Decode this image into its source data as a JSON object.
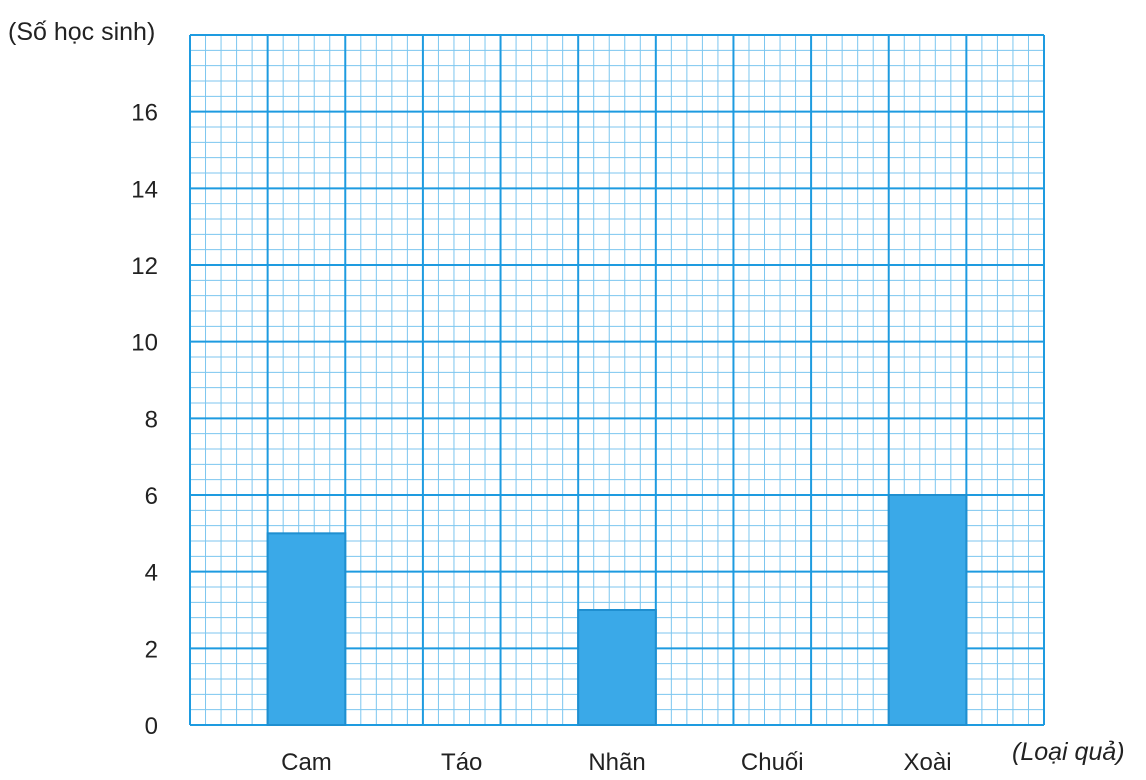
{
  "chart_data": {
    "type": "bar",
    "ylabel": "(Số học sinh)",
    "xlabel": "(Loại quả)",
    "categories": [
      "Cam",
      "Táo",
      "Nhãn",
      "Chuối",
      "Xoài"
    ],
    "values": [
      5,
      0,
      3,
      0,
      6
    ],
    "ylim": [
      0,
      18
    ],
    "yticks": [
      0,
      2,
      4,
      6,
      8,
      10,
      12,
      14,
      16
    ],
    "grid": true,
    "colors": {
      "bar": "#3aa9e8",
      "bar_edge": "#1f8fd0",
      "grid_major": "#1e9be0",
      "grid_minor": "#7cc6ef",
      "text": "#222222"
    }
  }
}
